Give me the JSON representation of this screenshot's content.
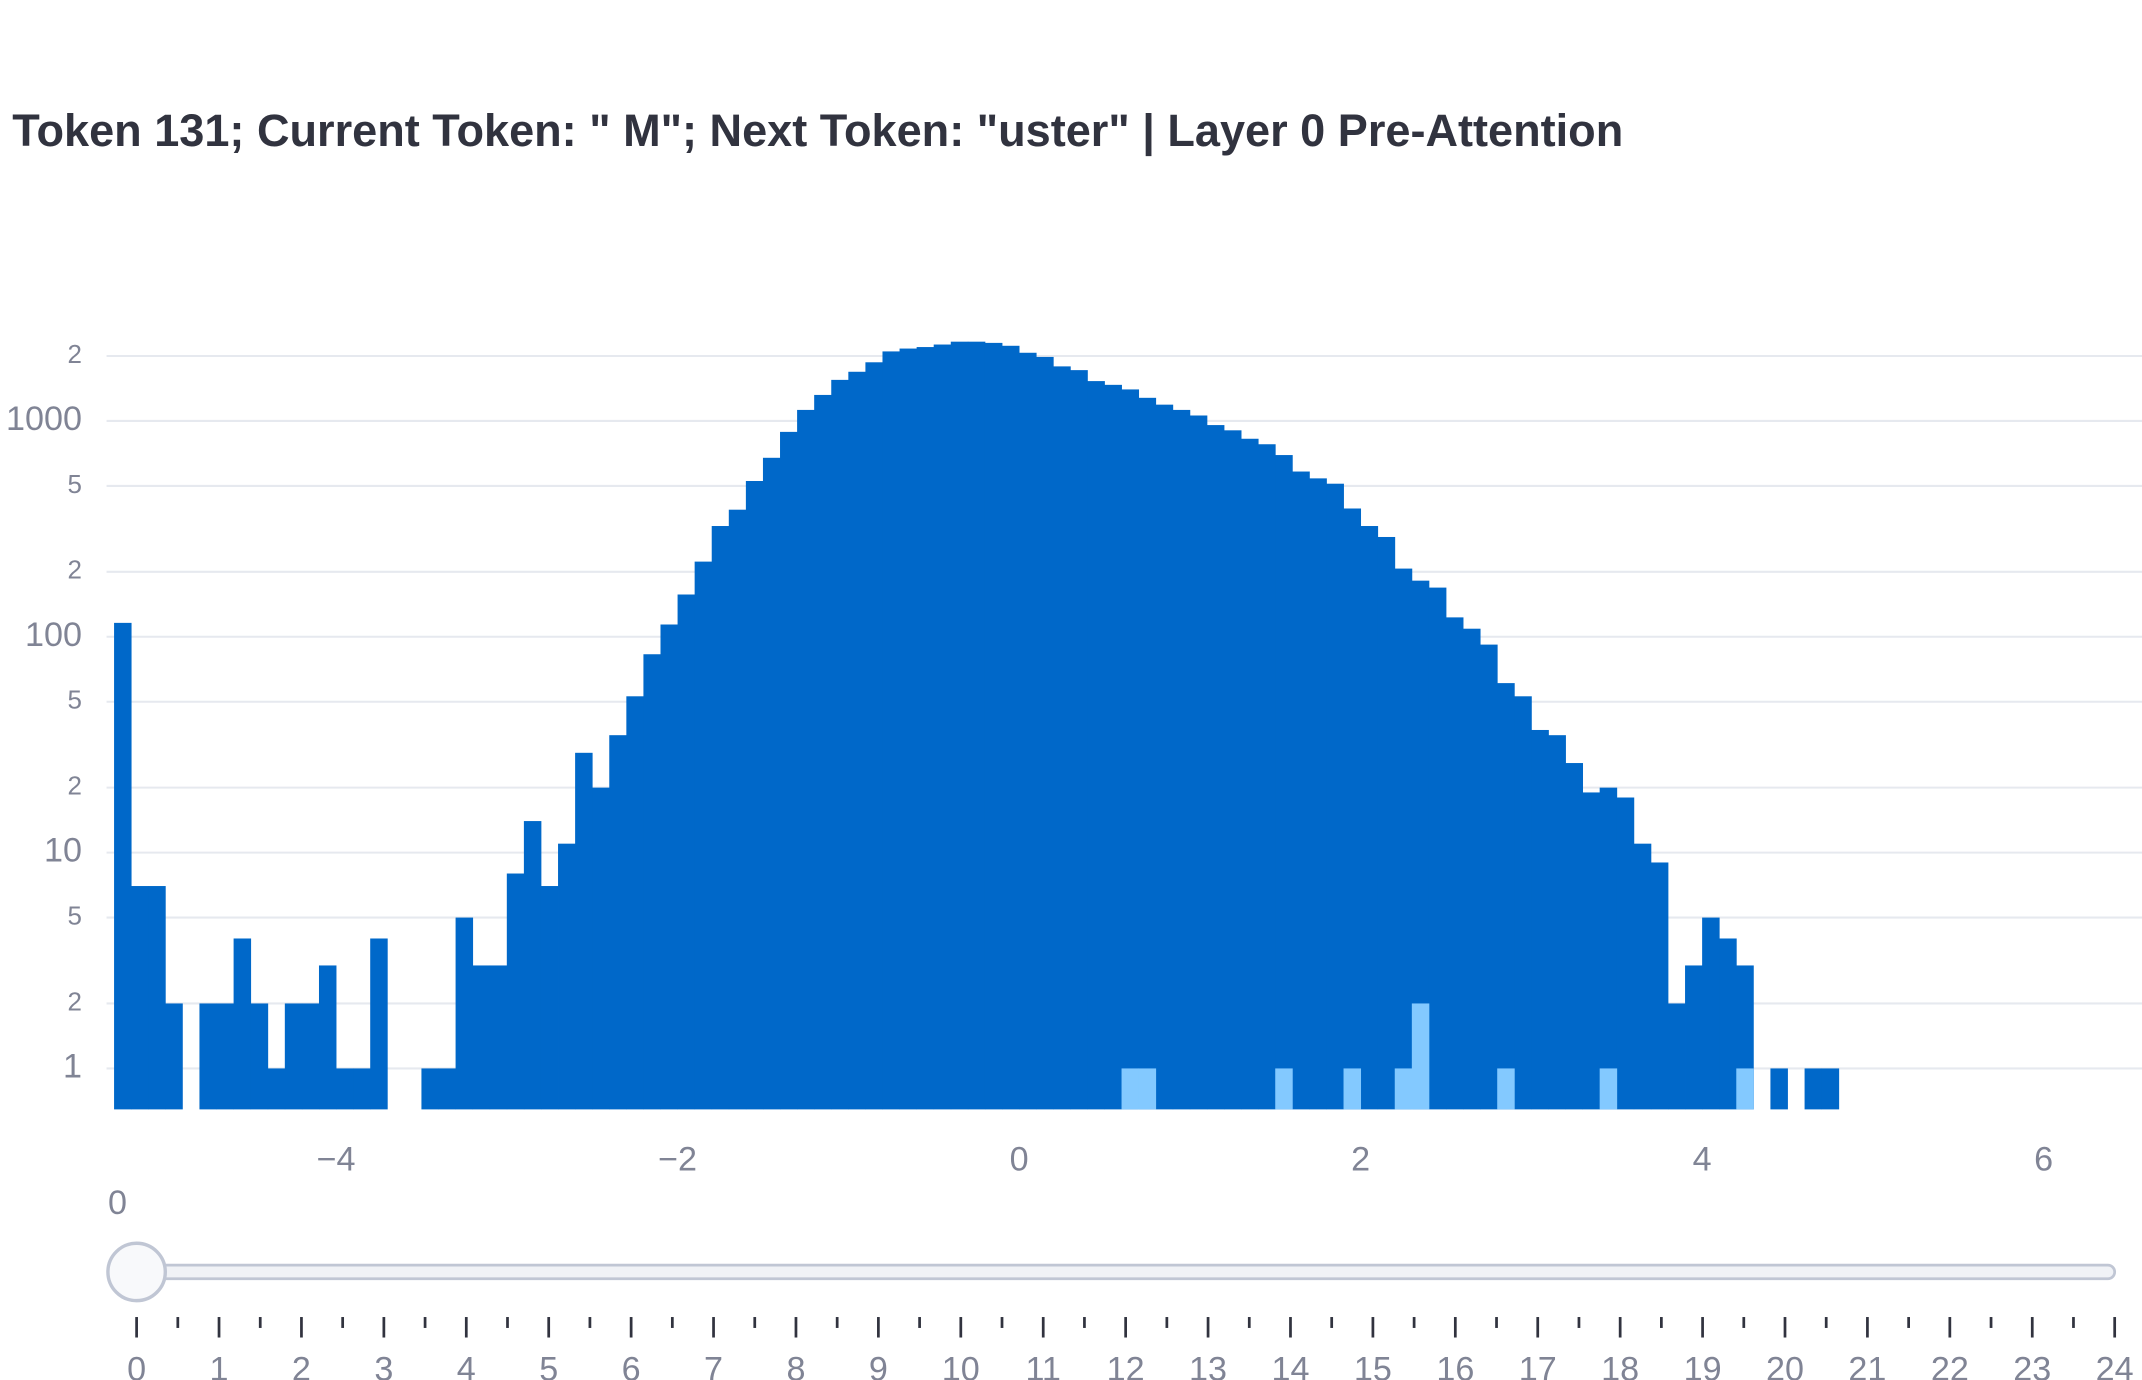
{
  "chart_data": {
    "type": "histogram",
    "title": "Token 131; Current Token: \" M\"; Next Token: \"uster\" | Layer 0 Pre-Attention",
    "bins": [
      -5.3,
      -5.2,
      -5.1,
      -5.0,
      -4.9,
      -4.8,
      -4.7,
      -4.6,
      -4.5,
      -4.4,
      -4.3,
      -4.2,
      -4.1,
      -4.0,
      -3.9,
      -3.8,
      -3.7,
      -3.6,
      -3.5,
      -3.4,
      -3.3,
      -3.2,
      -3.1,
      -3.0,
      -2.9,
      -2.8,
      -2.7,
      -2.6,
      -2.5,
      -2.4,
      -2.3,
      -2.2,
      -2.1,
      -2.0,
      -1.9,
      -1.8,
      -1.7,
      -1.6,
      -1.5,
      -1.4,
      -1.3,
      -1.2,
      -1.1,
      -1.0,
      -0.9,
      -0.8,
      -0.7,
      -0.6,
      -0.5,
      -0.4,
      -0.3,
      -0.2,
      -0.1,
      0,
      0.1,
      0.2,
      0.3,
      0.4,
      0.5,
      0.6,
      0.7,
      0.8,
      0.9,
      1.0,
      1.1,
      1.2,
      1.3,
      1.4,
      1.5,
      1.6,
      1.7,
      1.8,
      1.9,
      2.0,
      2.1,
      2.2,
      2.3,
      2.4,
      2.5,
      2.6,
      2.7,
      2.8,
      2.9,
      3.0,
      3.1,
      3.2,
      3.3,
      3.4,
      3.5,
      3.6,
      3.7,
      3.8,
      3.9,
      4.0,
      4.1,
      4.2,
      4.3,
      4.4,
      4.5,
      4.6,
      4.7,
      4.8
    ],
    "series": [
      {
        "color": "#0068c9",
        "values": [
          116,
          7,
          7,
          2,
          0,
          2,
          2,
          4,
          2,
          1,
          2,
          2,
          3,
          1,
          1,
          4,
          0,
          0,
          1,
          1,
          5,
          3,
          3,
          8,
          14,
          7,
          11,
          29,
          20,
          35,
          53,
          83,
          114,
          157,
          223,
          326,
          388,
          527,
          675,
          890,
          1125,
          1320,
          1550,
          1690,
          1870,
          2100,
          2165,
          2200,
          2260,
          2330,
          2330,
          2300,
          2230,
          2070,
          1980,
          1790,
          1720,
          1530,
          1470,
          1400,
          1280,
          1190,
          1125,
          1060,
          957,
          905,
          827,
          780,
          695,
          583,
          542,
          512,
          393,
          326,
          290,
          207,
          182,
          169,
          123,
          109,
          92,
          61,
          53,
          37,
          35,
          26,
          19,
          20,
          18,
          11,
          9,
          2,
          3,
          5,
          4,
          3,
          0,
          1,
          0,
          1,
          1
        ]
      },
      {
        "color": "#83c9ff",
        "values": [
          0,
          0,
          0,
          0,
          0,
          0,
          0,
          0,
          0,
          0,
          0,
          0,
          0,
          0,
          0,
          0,
          0,
          0,
          0,
          0,
          0,
          0,
          0,
          0,
          0,
          0,
          0,
          0,
          0,
          0,
          0,
          0,
          0,
          0,
          0,
          0,
          0,
          0,
          0,
          0,
          0,
          0,
          0,
          0,
          0,
          0,
          0,
          0,
          0,
          0,
          0,
          0,
          0,
          0,
          0,
          0,
          0,
          0,
          0,
          1,
          1,
          0,
          0,
          0,
          0,
          0,
          0,
          0,
          1,
          0,
          0,
          0,
          1,
          0,
          0,
          1,
          2,
          0,
          0,
          0,
          0,
          1,
          0,
          0,
          0,
          0,
          0,
          1,
          0,
          0,
          0,
          0,
          0,
          0,
          0,
          1,
          0,
          0,
          0,
          0,
          0
        ]
      }
    ],
    "xlim": [
      -5.344,
      6.576
    ],
    "xticks": [
      {
        "value": -4,
        "label": "−4"
      },
      {
        "value": -2,
        "label": "−2"
      },
      0,
      2,
      4,
      6
    ],
    "ylim": [
      0.646,
      2900
    ],
    "log_y": true,
    "yticks": [
      1,
      2,
      5,
      10,
      {
        "value": 20,
        "label": "2"
      },
      {
        "value": 50,
        "label": "5"
      },
      100,
      {
        "value": 200,
        "label": "2"
      },
      {
        "value": 500,
        "label": "5"
      },
      1000,
      {
        "value": 2000,
        "label": "2"
      }
    ],
    "grid": true
  },
  "slider": {
    "value": 0,
    "steps": [
      0,
      1,
      2,
      3,
      4,
      5,
      6,
      7,
      8,
      9,
      10,
      11,
      12,
      13,
      14,
      15,
      16,
      17,
      18,
      19,
      20,
      21,
      22,
      23,
      24
    ]
  }
}
